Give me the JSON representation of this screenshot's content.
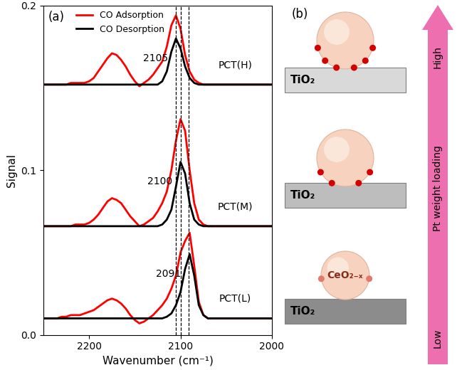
{
  "chart_data": {
    "type": "line",
    "panel": "(a)",
    "x_label": "Wavenumber (cm⁻¹)",
    "y_label": "Signal",
    "x": [
      2250,
      2245,
      2240,
      2235,
      2230,
      2225,
      2220,
      2215,
      2210,
      2205,
      2200,
      2195,
      2190,
      2185,
      2180,
      2175,
      2170,
      2165,
      2160,
      2155,
      2150,
      2145,
      2140,
      2135,
      2130,
      2125,
      2120,
      2115,
      2110,
      2105,
      2100,
      2095,
      2090,
      2085,
      2080,
      2075,
      2070,
      2065,
      2060,
      2055,
      2050,
      2045,
      2040,
      2035,
      2030,
      2025,
      2020,
      2015,
      2010,
      2005,
      2000
    ],
    "xlim": [
      2250,
      2000
    ],
    "xticks": [
      2200,
      2100,
      2000
    ],
    "ylim": [
      0.0,
      0.2
    ],
    "yticks": [
      0.0,
      0.1,
      0.2
    ],
    "legend": "upper left",
    "series": [
      {
        "name": "CO Adsorption",
        "sample": "PCT(L)",
        "color": "#ff0000",
        "values": [
          0.01,
          0.01,
          0.01,
          0.01,
          0.011,
          0.011,
          0.012,
          0.012,
          0.012,
          0.013,
          0.014,
          0.015,
          0.017,
          0.019,
          0.021,
          0.022,
          0.021,
          0.019,
          0.016,
          0.012,
          0.009,
          0.007,
          0.008,
          0.01,
          0.012,
          0.015,
          0.018,
          0.022,
          0.028,
          0.036,
          0.05,
          0.057,
          0.062,
          0.042,
          0.02,
          0.012,
          0.01,
          0.01,
          0.01,
          0.01,
          0.01,
          0.01,
          0.01,
          0.01,
          0.01,
          0.01,
          0.01,
          0.01,
          0.01,
          0.01,
          0.01
        ]
      },
      {
        "name": "CO Desorption",
        "sample": "PCT(L)",
        "color": "#000000",
        "values": [
          0.01,
          0.01,
          0.01,
          0.01,
          0.01,
          0.01,
          0.01,
          0.01,
          0.01,
          0.01,
          0.01,
          0.01,
          0.01,
          0.01,
          0.01,
          0.01,
          0.01,
          0.01,
          0.01,
          0.01,
          0.01,
          0.01,
          0.01,
          0.01,
          0.01,
          0.01,
          0.01,
          0.011,
          0.013,
          0.018,
          0.026,
          0.04,
          0.049,
          0.036,
          0.018,
          0.012,
          0.01,
          0.01,
          0.01,
          0.01,
          0.01,
          0.01,
          0.01,
          0.01,
          0.01,
          0.01,
          0.01,
          0.01,
          0.01,
          0.01,
          0.01
        ]
      },
      {
        "name": "CO Adsorption",
        "sample": "PCT(M)",
        "color": "#ff0000",
        "values": [
          0.066,
          0.066,
          0.066,
          0.066,
          0.066,
          0.066,
          0.066,
          0.067,
          0.067,
          0.067,
          0.068,
          0.07,
          0.073,
          0.077,
          0.081,
          0.083,
          0.082,
          0.08,
          0.076,
          0.072,
          0.069,
          0.066,
          0.067,
          0.069,
          0.071,
          0.075,
          0.08,
          0.087,
          0.1,
          0.118,
          0.131,
          0.124,
          0.1,
          0.08,
          0.07,
          0.067,
          0.066,
          0.066,
          0.066,
          0.066,
          0.066,
          0.066,
          0.066,
          0.066,
          0.066,
          0.066,
          0.066,
          0.066,
          0.066,
          0.066,
          0.066
        ]
      },
      {
        "name": "CO Desorption",
        "sample": "PCT(M)",
        "color": "#000000",
        "values": [
          0.066,
          0.066,
          0.066,
          0.066,
          0.066,
          0.066,
          0.066,
          0.066,
          0.066,
          0.066,
          0.066,
          0.066,
          0.066,
          0.066,
          0.066,
          0.066,
          0.066,
          0.066,
          0.066,
          0.066,
          0.066,
          0.066,
          0.066,
          0.066,
          0.066,
          0.066,
          0.067,
          0.07,
          0.076,
          0.09,
          0.105,
          0.098,
          0.08,
          0.07,
          0.067,
          0.066,
          0.066,
          0.066,
          0.066,
          0.066,
          0.066,
          0.066,
          0.066,
          0.066,
          0.066,
          0.066,
          0.066,
          0.066,
          0.066,
          0.066,
          0.066
        ]
      },
      {
        "name": "CO Adsorption",
        "sample": "PCT(H)",
        "color": "#ff0000",
        "values": [
          0.152,
          0.152,
          0.152,
          0.152,
          0.152,
          0.152,
          0.153,
          0.153,
          0.153,
          0.153,
          0.154,
          0.156,
          0.16,
          0.164,
          0.168,
          0.171,
          0.17,
          0.167,
          0.163,
          0.158,
          0.154,
          0.151,
          0.153,
          0.155,
          0.158,
          0.162,
          0.166,
          0.175,
          0.188,
          0.194,
          0.186,
          0.17,
          0.16,
          0.155,
          0.153,
          0.152,
          0.152,
          0.152,
          0.152,
          0.152,
          0.152,
          0.152,
          0.152,
          0.152,
          0.152,
          0.152,
          0.152,
          0.152,
          0.152,
          0.152,
          0.152
        ]
      },
      {
        "name": "CO Desorption",
        "sample": "PCT(H)",
        "color": "#000000",
        "values": [
          0.152,
          0.152,
          0.152,
          0.152,
          0.152,
          0.152,
          0.152,
          0.152,
          0.152,
          0.152,
          0.152,
          0.152,
          0.152,
          0.152,
          0.152,
          0.152,
          0.152,
          0.152,
          0.152,
          0.152,
          0.152,
          0.152,
          0.152,
          0.152,
          0.152,
          0.152,
          0.154,
          0.16,
          0.172,
          0.18,
          0.174,
          0.163,
          0.156,
          0.153,
          0.152,
          0.152,
          0.152,
          0.152,
          0.152,
          0.152,
          0.152,
          0.152,
          0.152,
          0.152,
          0.152,
          0.152,
          0.152,
          0.152,
          0.152,
          0.152,
          0.152
        ]
      }
    ],
    "peaks": [
      {
        "sample": "PCT(H)",
        "value": 2105
      },
      {
        "sample": "PCT(M)",
        "value": 2100
      },
      {
        "sample": "PCT(L)",
        "value": 2091
      }
    ]
  },
  "diagram": {
    "panel": "(b)",
    "arrow": {
      "top": "High",
      "middle": "Pt weight loading",
      "bottom": "Low"
    },
    "rows": [
      {
        "support": "TiO₂"
      },
      {
        "support": "TiO₂"
      },
      {
        "support": "TiO₂",
        "particle": "CeO₂₋ₓ"
      }
    ]
  }
}
